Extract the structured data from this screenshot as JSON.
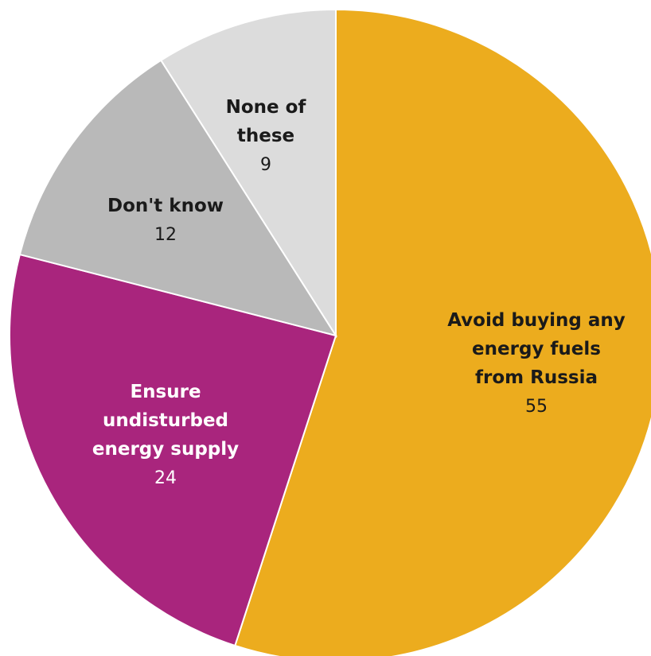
{
  "chart_data": {
    "type": "pie",
    "title": "",
    "start_angle_deg": 0,
    "direction": "clockwise",
    "slices": [
      {
        "label": "Avoid buying any energy fuels from Russia",
        "label_lines": [
          "Avoid buying any",
          "energy fuels",
          "from Russia"
        ],
        "value": 55,
        "value_label": "55",
        "color": "#ECAC1E",
        "text_color": "#1a1a1a"
      },
      {
        "label": "Ensure undisturbed energy supply",
        "label_lines": [
          "Ensure",
          "undisturbed",
          "energy supply"
        ],
        "value": 24,
        "value_label": "24",
        "color": "#A9257D",
        "text_color": "#ffffff"
      },
      {
        "label": "Don't know",
        "label_lines": [
          "Don't know"
        ],
        "value": 12,
        "value_label": "12",
        "color": "#B9B9B9",
        "text_color": "#1a1a1a"
      },
      {
        "label": "None of these",
        "label_lines": [
          "None of",
          "these"
        ],
        "value": 9,
        "value_label": "9",
        "color": "#DCDCDC",
        "text_color": "#1a1a1a"
      }
    ]
  }
}
